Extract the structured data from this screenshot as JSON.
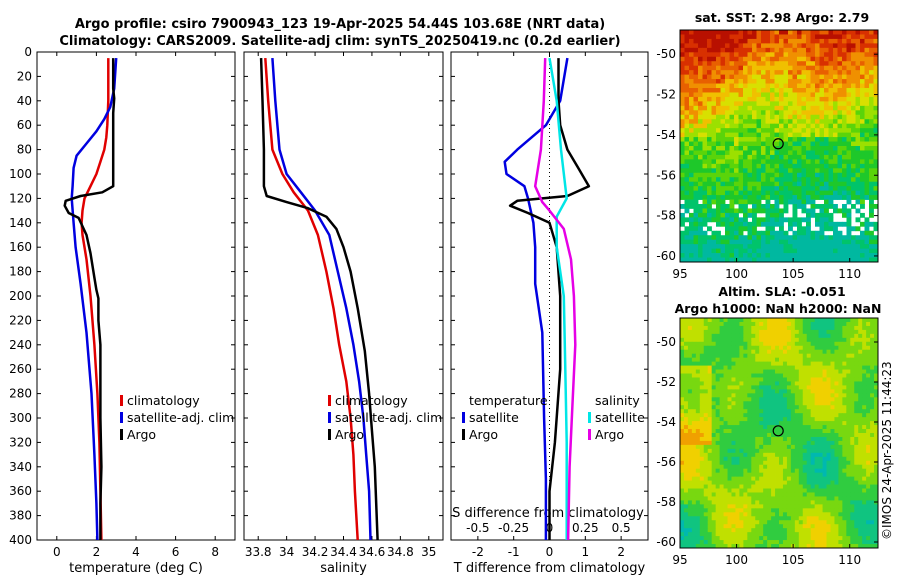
{
  "figure": {
    "title_line1": "Argo profile: csiro 7900943_123 19-Apr-2025 54.44S 103.68E (NRT data)",
    "title_line2": "Climatology: CARS2009. Satellite-adj clim: synTS_20250419.nc (0.2d earlier)",
    "watermark": "©IMOS 24-Apr-2025 11:44:23",
    "colors": {
      "red": "#e00000",
      "blue": "#0000e0",
      "black": "#000000",
      "cyan": "#00e6e6",
      "magenta": "#e600e6"
    }
  },
  "chart_data": [
    {
      "id": "temperature",
      "type": "line",
      "xlabel": "temperature (deg C)",
      "ylabel": "",
      "xlim": [
        -1,
        9
      ],
      "ylim": [
        400,
        0
      ],
      "xticks": [
        0,
        2,
        4,
        6,
        8
      ],
      "yticks": [
        0,
        20,
        40,
        60,
        80,
        100,
        120,
        140,
        160,
        180,
        200,
        220,
        240,
        260,
        280,
        300,
        320,
        340,
        360,
        380,
        400
      ],
      "legend": {
        "placement": "lower-right",
        "entries": [
          "climatology",
          "satellite-adj. clim",
          "Argo"
        ]
      },
      "series": [
        {
          "name": "climatology",
          "color": "red",
          "points": [
            [
              2.6,
              5
            ],
            [
              2.6,
              40
            ],
            [
              2.55,
              60
            ],
            [
              2.5,
              70
            ],
            [
              2.4,
              80
            ],
            [
              2.2,
              90
            ],
            [
              2.0,
              100
            ],
            [
              1.7,
              110
            ],
            [
              1.4,
              120
            ],
            [
              1.3,
              130
            ],
            [
              1.25,
              140
            ],
            [
              1.3,
              150
            ],
            [
              1.5,
              170
            ],
            [
              1.7,
              200
            ],
            [
              1.9,
              240
            ],
            [
              2.05,
              280
            ],
            [
              2.15,
              320
            ],
            [
              2.2,
              360
            ],
            [
              2.25,
              400
            ]
          ]
        },
        {
          "name": "satellite-adj. clim",
          "color": "blue",
          "points": [
            [
              3.0,
              5
            ],
            [
              2.9,
              30
            ],
            [
              2.7,
              45
            ],
            [
              2.4,
              55
            ],
            [
              2.0,
              65
            ],
            [
              1.5,
              75
            ],
            [
              1.0,
              85
            ],
            [
              0.85,
              95
            ],
            [
              0.8,
              110
            ],
            [
              0.75,
              120
            ],
            [
              0.85,
              140
            ],
            [
              0.95,
              160
            ],
            [
              1.2,
              190
            ],
            [
              1.5,
              230
            ],
            [
              1.75,
              280
            ],
            [
              1.9,
              330
            ],
            [
              2.0,
              370
            ],
            [
              2.05,
              400
            ]
          ]
        },
        {
          "name": "Argo",
          "color": "black",
          "points": [
            [
              2.85,
              5
            ],
            [
              2.85,
              30
            ],
            [
              2.9,
              38
            ],
            [
              2.85,
              50
            ],
            [
              2.85,
              90
            ],
            [
              2.85,
              110
            ],
            [
              2.3,
              115
            ],
            [
              1.2,
              118
            ],
            [
              0.45,
              122
            ],
            [
              0.4,
              126
            ],
            [
              0.6,
              132
            ],
            [
              1.1,
              136
            ],
            [
              1.5,
              150
            ],
            [
              1.7,
              165
            ],
            [
              1.9,
              185
            ],
            [
              2.0,
              195
            ],
            [
              2.1,
              202
            ],
            [
              2.1,
              220
            ],
            [
              2.2,
              240
            ],
            [
              2.2,
              260
            ],
            [
              2.2,
              300
            ],
            [
              2.25,
              340
            ],
            [
              2.2,
              370
            ],
            [
              2.2,
              400
            ]
          ]
        }
      ]
    },
    {
      "id": "salinity",
      "type": "line",
      "xlabel": "salinity",
      "ylabel": "",
      "xlim": [
        33.7,
        35.1
      ],
      "ylim": [
        400,
        0
      ],
      "xticks": [
        33.8,
        34,
        34.2,
        34.4,
        34.6,
        34.8,
        35
      ],
      "legend": {
        "placement": "lower-right",
        "entries": [
          "climatology",
          "satellite-adj. clim",
          "Argo"
        ]
      },
      "series": [
        {
          "name": "climatology",
          "color": "red",
          "points": [
            [
              33.85,
              5
            ],
            [
              33.87,
              40
            ],
            [
              33.9,
              80
            ],
            [
              33.97,
              100
            ],
            [
              34.05,
              115
            ],
            [
              34.15,
              130
            ],
            [
              34.22,
              150
            ],
            [
              34.28,
              180
            ],
            [
              34.33,
              210
            ],
            [
              34.37,
              240
            ],
            [
              34.42,
              270
            ],
            [
              34.45,
              300
            ],
            [
              34.47,
              330
            ],
            [
              34.48,
              360
            ],
            [
              34.5,
              400
            ]
          ]
        },
        {
          "name": "satellite-adj. clim",
          "color": "blue",
          "points": [
            [
              33.9,
              5
            ],
            [
              33.92,
              40
            ],
            [
              33.95,
              80
            ],
            [
              34.0,
              100
            ],
            [
              34.1,
              115
            ],
            [
              34.2,
              130
            ],
            [
              34.3,
              150
            ],
            [
              34.36,
              180
            ],
            [
              34.42,
              210
            ],
            [
              34.47,
              240
            ],
            [
              34.51,
              270
            ],
            [
              34.54,
              300
            ],
            [
              34.56,
              330
            ],
            [
              34.58,
              360
            ],
            [
              34.59,
              400
            ]
          ]
        },
        {
          "name": "Argo",
          "color": "black",
          "points": [
            [
              33.82,
              5
            ],
            [
              33.83,
              40
            ],
            [
              33.84,
              80
            ],
            [
              33.84,
              110
            ],
            [
              33.86,
              118
            ],
            [
              34.0,
              123
            ],
            [
              34.15,
              128
            ],
            [
              34.28,
              135
            ],
            [
              34.35,
              145
            ],
            [
              34.4,
              160
            ],
            [
              34.45,
              180
            ],
            [
              34.5,
              210
            ],
            [
              34.55,
              245
            ],
            [
              34.58,
              280
            ],
            [
              34.6,
              310
            ],
            [
              34.62,
              340
            ],
            [
              34.63,
              370
            ],
            [
              34.64,
              400
            ]
          ]
        }
      ]
    },
    {
      "id": "difference",
      "type": "line",
      "xlabel": "T difference from climatology",
      "xlabel_top": "S difference from climatology",
      "xlim": [
        -2.75,
        2.75
      ],
      "ylim": [
        400,
        0
      ],
      "xticks": [
        -2,
        -1,
        0,
        1,
        2
      ],
      "xticks_s": [
        "-0.5",
        "-0.25",
        "0",
        "0.25",
        "0.5"
      ],
      "s_scale": 4,
      "legend_temp": {
        "placement": "lower-left",
        "heading": "temperature",
        "entries": [
          "satellite",
          "Argo"
        ]
      },
      "legend_sal": {
        "placement": "lower-right",
        "heading": "salinity",
        "entries": [
          "satellite",
          "Argo"
        ]
      },
      "series": [
        {
          "name": "temperature satellite",
          "color": "blue",
          "points": [
            [
              0.5,
              5
            ],
            [
              0.3,
              40
            ],
            [
              -0.1,
              60
            ],
            [
              -0.9,
              80
            ],
            [
              -1.25,
              90
            ],
            [
              -1.2,
              100
            ],
            [
              -0.7,
              110
            ],
            [
              -0.6,
              120
            ],
            [
              -0.45,
              140
            ],
            [
              -0.4,
              160
            ],
            [
              -0.4,
              190
            ],
            [
              -0.2,
              230
            ],
            [
              -0.15,
              300
            ],
            [
              -0.1,
              350
            ],
            [
              -0.1,
              400
            ]
          ]
        },
        {
          "name": "temperature Argo",
          "color": "black",
          "points": [
            [
              0.25,
              5
            ],
            [
              0.25,
              40
            ],
            [
              0.3,
              60
            ],
            [
              0.5,
              80
            ],
            [
              0.8,
              95
            ],
            [
              1.1,
              110
            ],
            [
              0.5,
              118
            ],
            [
              -0.9,
              122
            ],
            [
              -1.1,
              126
            ],
            [
              -0.6,
              132
            ],
            [
              0.0,
              140
            ],
            [
              0.2,
              160
            ],
            [
              0.3,
              200
            ],
            [
              0.3,
              260
            ],
            [
              0.15,
              320
            ],
            [
              0.0,
              360
            ],
            [
              0.0,
              400
            ]
          ]
        },
        {
          "name": "salinity satellite",
          "color": "cyan",
          "points": [
            [
              0.0,
              5
            ],
            [
              0.05,
              40
            ],
            [
              0.08,
              80
            ],
            [
              0.12,
              120
            ],
            [
              0.05,
              135
            ],
            [
              0.05,
              160
            ],
            [
              0.1,
              200
            ],
            [
              0.11,
              260
            ],
            [
              0.12,
              320
            ],
            [
              0.12,
              400
            ]
          ]
        },
        {
          "name": "salinity Argo",
          "color": "magenta",
          "points": [
            [
              -0.03,
              5
            ],
            [
              -0.04,
              40
            ],
            [
              -0.06,
              80
            ],
            [
              -0.1,
              110
            ],
            [
              -0.05,
              123
            ],
            [
              0.0,
              130
            ],
            [
              0.1,
              145
            ],
            [
              0.15,
              170
            ],
            [
              0.17,
              200
            ],
            [
              0.18,
              240
            ],
            [
              0.16,
              290
            ],
            [
              0.14,
              340
            ],
            [
              0.13,
              400
            ]
          ]
        }
      ]
    },
    {
      "id": "sst_map",
      "type": "heatmap",
      "title": "sat. SST: 2.98 Argo: 2.79",
      "xticks": [
        95,
        100,
        105,
        110
      ],
      "yticks": [
        -50,
        -52,
        -54,
        -56,
        -58,
        -60
      ],
      "xlim": [
        95,
        112.5
      ],
      "ylim": [
        -60.3,
        -48.8
      ],
      "marker": {
        "lon": 103.68,
        "lat": -54.44
      },
      "palette": [
        "#00b8a0",
        "#00c46a",
        "#1ec82a",
        "#5ad40a",
        "#9ce000",
        "#d8e000",
        "#f0c000",
        "#f09000",
        "#e86000",
        "#d83000",
        "#b81000"
      ]
    },
    {
      "id": "sla_map",
      "type": "heatmap",
      "title_line1": "Altim. SLA: -0.051",
      "title_line2": "Argo h1000: NaN h2000: NaN",
      "xticks": [
        95,
        100,
        105,
        110
      ],
      "yticks": [
        -50,
        -52,
        -54,
        -56,
        -58,
        -60
      ],
      "xlim": [
        95,
        112.5
      ],
      "ylim": [
        -60.3,
        -48.8
      ],
      "marker": {
        "lon": 103.68,
        "lat": -54.44
      },
      "palette": [
        "#00b8b0",
        "#10c480",
        "#30cc40",
        "#78d810",
        "#c0e000",
        "#f0d000",
        "#f0a000"
      ]
    }
  ]
}
